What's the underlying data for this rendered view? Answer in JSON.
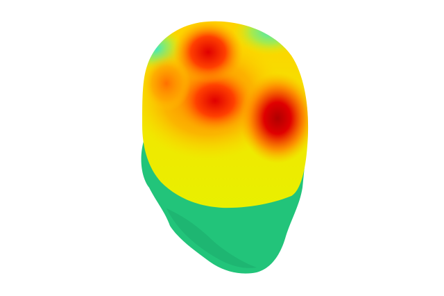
{
  "scene": {
    "subject": "head-surface-topography",
    "colors": {
      "background": "#ffffff",
      "head_surface": "#22c47a",
      "map_low": "#40e8c0",
      "map_mid": "#f4f000",
      "map_orange": "#ff8a00",
      "map_high": "#e00000",
      "map_peak": "#a00000"
    }
  }
}
